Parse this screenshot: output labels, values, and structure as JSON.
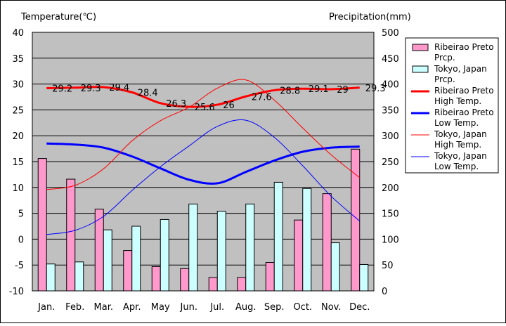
{
  "chart_data": {
    "type": "bar+line",
    "left_axis_label": "Temperature(℃)",
    "right_axis_label": "Precipitation(mm)",
    "categories": [
      "Jan.",
      "Feb.",
      "Mar.",
      "Apr.",
      "May",
      "Jun.",
      "Jul.",
      "Aug.",
      "Sep.",
      "Oct.",
      "Nov.",
      "Dec."
    ],
    "ylim_left": [
      -10,
      40
    ],
    "ylim_right": [
      0,
      500
    ],
    "left_ticks": [
      "40",
      "35",
      "30",
      "25",
      "20",
      "15",
      "10",
      "5",
      "0",
      "-5",
      "-10"
    ],
    "right_ticks": [
      "500",
      "450",
      "400",
      "350",
      "300",
      "250",
      "200",
      "150",
      "100",
      "50",
      "0"
    ],
    "grid": true,
    "legend_position": "right",
    "bar_series": [
      {
        "name": "Ribeirao Preto Prcp.",
        "color": "#ff99cc",
        "values": [
          256,
          216,
          158,
          78,
          47,
          43,
          26,
          26,
          55,
          137,
          188,
          274
        ]
      },
      {
        "name": "Tokyo, Japan Prcp.",
        "color": "#ccffff",
        "values": [
          52,
          56,
          118,
          125,
          138,
          168,
          154,
          168,
          210,
          198,
          93,
          51
        ]
      }
    ],
    "line_series": [
      {
        "name": "Ribeirao Preto High Temp.",
        "color": "#ff0000",
        "width": 3,
        "values": [
          29.2,
          29.3,
          29.4,
          28.4,
          26.3,
          25.6,
          26,
          27.6,
          28.8,
          29.1,
          29,
          29.3
        ],
        "labels": [
          "29.2",
          "29.3",
          "29.4",
          "28.4",
          "26.3",
          "25.6",
          "26",
          "27.6",
          "28.8",
          "29.1",
          "29",
          "29.3"
        ]
      },
      {
        "name": "Ribeirao Preto Low Temp.",
        "color": "#0000ff",
        "width": 3,
        "values": [
          18.5,
          18.3,
          17.7,
          16.0,
          13.7,
          11.5,
          10.8,
          13.0,
          15.2,
          16.9,
          17.7,
          17.9
        ]
      },
      {
        "name": "Tokyo, Japan High Temp.",
        "color": "#ff0000",
        "width": 1,
        "values": [
          9.6,
          10.4,
          13.6,
          19.0,
          22.9,
          25.5,
          29.2,
          30.8,
          26.9,
          21.5,
          16.3,
          11.9
        ]
      },
      {
        "name": "Tokyo, Japan Low Temp.",
        "color": "#0000ff",
        "width": 1,
        "values": [
          0.9,
          1.7,
          4.4,
          9.4,
          14.0,
          18.0,
          21.8,
          23.0,
          19.7,
          14.2,
          8.3,
          3.5
        ]
      }
    ],
    "legend": [
      {
        "line1": "Ribeirao Preto",
        "line2": "Prcp.",
        "kind": "bar",
        "color": "#ff99cc"
      },
      {
        "line1": "Tokyo, Japan",
        "line2": "Prcp.",
        "kind": "bar",
        "color": "#ccffff"
      },
      {
        "line1": "Ribeirao Preto",
        "line2": "High Temp.",
        "kind": "line",
        "color": "#ff0000",
        "width": 3
      },
      {
        "line1": "Ribeirao Preto",
        "line2": "Low Temp.",
        "kind": "line",
        "color": "#0000ff",
        "width": 3
      },
      {
        "line1": "Tokyo, Japan",
        "line2": "High Temp.",
        "kind": "line",
        "color": "#ff0000",
        "width": 1
      },
      {
        "line1": "Tokyo, Japan",
        "line2": "Low Temp.",
        "kind": "line",
        "color": "#0000ff",
        "width": 1
      }
    ],
    "colors": {
      "plot_bg": "#c0c0c0",
      "grid": "#000000"
    }
  }
}
